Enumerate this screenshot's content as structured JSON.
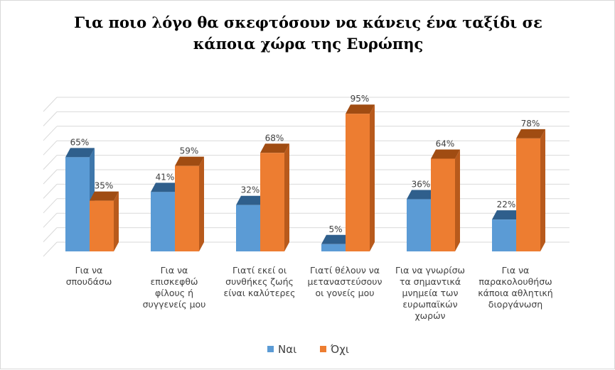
{
  "colors": {
    "yes": "#5b9bd5",
    "no": "#ed7d31"
  },
  "chart_data": {
    "type": "bar",
    "title": "Για ποιο λόγο θα σκεφτόσουν να κάνεις ένα ταξίδι σε κάποια χώρα της Ευρώπης",
    "title_lines": [
      "Για ποιο λόγο θα σκεφτόσουν να κάνεις ένα ταξίδι σε",
      "κάποια χώρα της Ευρώπης"
    ],
    "categories": [
      [
        "Για να",
        "σπουδάσω"
      ],
      [
        "Για να",
        "επισκεφθώ",
        "φίλους ή",
        "συγγενείς μου"
      ],
      [
        "Γιατί εκεί οι",
        "συνθήκες ζωής",
        "είναι καλύτερες"
      ],
      [
        "Γιατί θέλουν να",
        "μεταναστεύσουν",
        "οι γονείς μου"
      ],
      [
        "Για να γνωρίσω",
        "τα σημαντικά",
        "μνημεία των",
        "ευρωπαϊκών",
        "χωρών"
      ],
      [
        "Για να",
        "παρακολουθήσω",
        "κάποια αθλητική",
        "διοργάνωση"
      ]
    ],
    "series": [
      {
        "name": "Ναι",
        "values": [
          65,
          41,
          32,
          5,
          36,
          22
        ],
        "labels": [
          "65%",
          "41%",
          "32%",
          "5%",
          "36%",
          "22%"
        ]
      },
      {
        "name": "Όχι",
        "values": [
          35,
          59,
          68,
          95,
          64,
          78
        ],
        "labels": [
          "35%",
          "59%",
          "68%",
          "95%",
          "64%",
          "78%"
        ]
      }
    ],
    "ylim": [
      0,
      100
    ],
    "grid": true,
    "style": "3d-clustered-column",
    "legend_position": "bottom",
    "xlabel": "",
    "ylabel": ""
  }
}
